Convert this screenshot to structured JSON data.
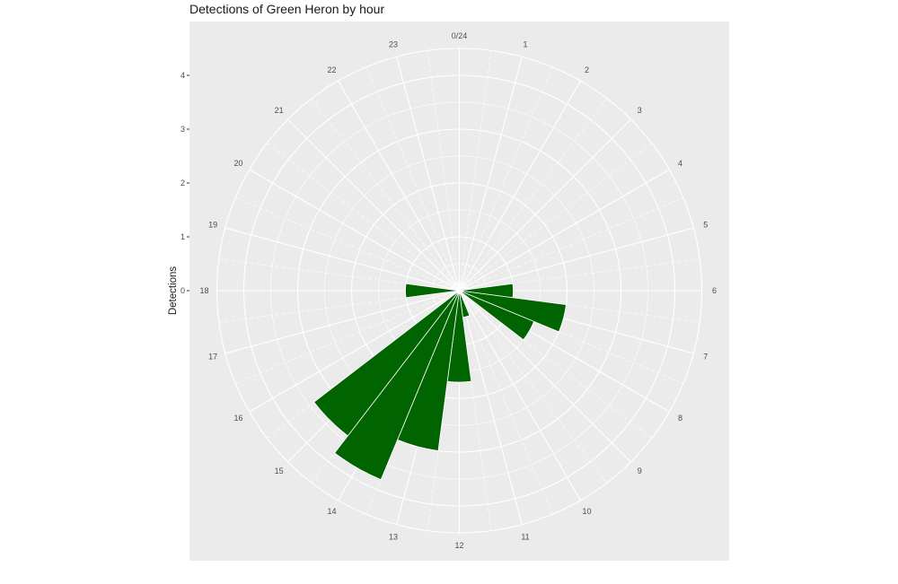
{
  "chart_data": {
    "type": "bar",
    "coord": "polar",
    "title": "Detections of Green Heron by hour",
    "xlabel": "",
    "ylabel": "Detections",
    "categories": [
      0,
      1,
      2,
      3,
      4,
      5,
      6,
      7,
      8,
      9,
      10,
      11,
      12,
      13,
      14,
      15,
      16,
      17,
      18,
      19,
      20,
      21,
      22,
      23
    ],
    "theta_labels": [
      "0/24",
      "1",
      "2",
      "3",
      "4",
      "5",
      "6",
      "7",
      "8",
      "9",
      "10",
      "11",
      "12",
      "13",
      "14",
      "15",
      "16",
      "17",
      "18",
      "19",
      "20",
      "21",
      "22",
      "23"
    ],
    "bin_offset": 0.5,
    "values": [
      0,
      0,
      0,
      0,
      0,
      0,
      1,
      2,
      1.5,
      0,
      0,
      0.5,
      1.7,
      3,
      3.8,
      3.4,
      0,
      0,
      1,
      0,
      0,
      0,
      0,
      0
    ],
    "series": [
      {
        "values": [
          0,
          0,
          0,
          0,
          0,
          0,
          1,
          2,
          1.5,
          0,
          0,
          0.5,
          1.7,
          3,
          3.8,
          3.4,
          0,
          0,
          1,
          0,
          0,
          0,
          0,
          0
        ],
        "color": "#006400"
      }
    ],
    "y_ticks": [
      0,
      1,
      2,
      3,
      4
    ],
    "ylim": [
      0,
      4.5
    ],
    "grid": true,
    "legend": "none",
    "colors": {
      "panel": "#ebebeb",
      "grid": "#ffffff",
      "bar": "#006400"
    }
  }
}
